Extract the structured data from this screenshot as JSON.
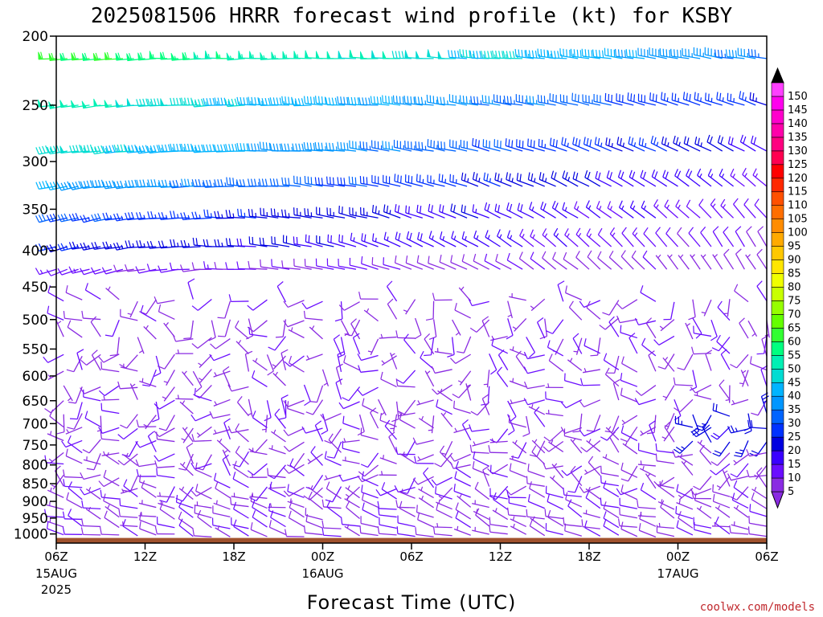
{
  "chart_data": {
    "type": "wind-barb-time-height",
    "title": "2025081506 HRRR forecast wind profile (kt) for KSBY",
    "xlabel": "Forecast Time (UTC)",
    "credit": "coolwx.com/models",
    "x_hours": [
      0,
      6,
      12,
      18,
      24,
      30,
      36,
      42,
      48
    ],
    "x_ticks": [
      {
        "hour": 0,
        "label": "06Z",
        "sub1": "15AUG",
        "sub2": "2025"
      },
      {
        "hour": 6,
        "label": "12Z",
        "sub1": "",
        "sub2": ""
      },
      {
        "hour": 12,
        "label": "18Z",
        "sub1": "",
        "sub2": ""
      },
      {
        "hour": 18,
        "label": "00Z",
        "sub1": "16AUG",
        "sub2": ""
      },
      {
        "hour": 24,
        "label": "06Z",
        "sub1": "",
        "sub2": ""
      },
      {
        "hour": 30,
        "label": "12Z",
        "sub1": "",
        "sub2": ""
      },
      {
        "hour": 36,
        "label": "18Z",
        "sub1": "",
        "sub2": ""
      },
      {
        "hour": 42,
        "label": "00Z",
        "sub1": "17AUG",
        "sub2": ""
      },
      {
        "hour": 48,
        "label": "06Z",
        "sub1": "",
        "sub2": ""
      }
    ],
    "y_ticks": [
      200,
      250,
      300,
      350,
      400,
      450,
      500,
      550,
      600,
      650,
      700,
      750,
      800,
      850,
      900,
      950,
      1000
    ],
    "y_tick_labels": [
      "200",
      "250",
      "300",
      "350",
      "400",
      "450",
      "500",
      "550",
      "600",
      "650",
      "700",
      "750",
      "800",
      "850",
      "900",
      "950",
      "1000"
    ],
    "ylim": [
      200,
      1030
    ],
    "y_scale": "log-pressure",
    "xlim": [
      0,
      48
    ],
    "ground_pressure": 1013,
    "colorbar": {
      "levels": [
        5,
        10,
        15,
        20,
        25,
        30,
        35,
        40,
        45,
        50,
        55,
        60,
        65,
        70,
        75,
        80,
        85,
        90,
        95,
        100,
        105,
        110,
        115,
        120,
        125,
        130,
        135,
        140,
        145,
        150
      ],
      "labels": [
        "5",
        "10",
        "15",
        "20",
        "25",
        "30",
        "35",
        "40",
        "45",
        "50",
        "55",
        "60",
        "65",
        "70",
        "75",
        "80",
        "85",
        "90",
        "95",
        "100",
        "105",
        "110",
        "115",
        "120",
        "125",
        "130",
        "135",
        "140",
        "145",
        "150"
      ],
      "colors": [
        "#8a2be2",
        "#6a0dff",
        "#3a00ff",
        "#0000e0",
        "#0032ff",
        "#0064ff",
        "#0096ff",
        "#00b4ff",
        "#00dcd2",
        "#00f0b4",
        "#00ff80",
        "#32ff32",
        "#64ff00",
        "#96ff00",
        "#c8ff00",
        "#f0ff00",
        "#ffe600",
        "#ffc800",
        "#ffaa00",
        "#ff8c00",
        "#ff6e00",
        "#ff5000",
        "#ff2800",
        "#ff0000",
        "#ff0050",
        "#ff0080",
        "#ff00aa",
        "#ff00cc",
        "#ff00ee",
        "#ff40ff"
      ],
      "arrow_top_color": "#000000",
      "arrow_bottom_color": "#8a2be2"
    },
    "wind_rows": [
      {
        "p": 215,
        "hours": [
          0,
          48
        ],
        "speed": [
          62,
          35
        ],
        "dir": [
          265,
          280
        ]
      },
      {
        "p": 250,
        "hours": [
          0,
          48
        ],
        "speed": [
          52,
          25
        ],
        "dir": [
          262,
          290
        ]
      },
      {
        "p": 290,
        "hours": [
          0,
          48
        ],
        "speed": [
          48,
          20
        ],
        "dir": [
          260,
          300
        ]
      },
      {
        "p": 325,
        "hours": [
          0,
          48
        ],
        "speed": [
          40,
          15
        ],
        "dir": [
          258,
          310
        ]
      },
      {
        "p": 360,
        "hours": [
          0,
          48
        ],
        "speed": [
          30,
          12
        ],
        "dir": [
          255,
          320
        ]
      },
      {
        "p": 395,
        "hours": [
          0,
          48
        ],
        "speed": [
          25,
          10
        ],
        "dir": [
          255,
          330
        ]
      },
      {
        "p": 425,
        "hours": [
          0,
          48
        ],
        "speed": [
          12,
          8
        ],
        "dir": [
          250,
          330
        ]
      }
    ]
  }
}
